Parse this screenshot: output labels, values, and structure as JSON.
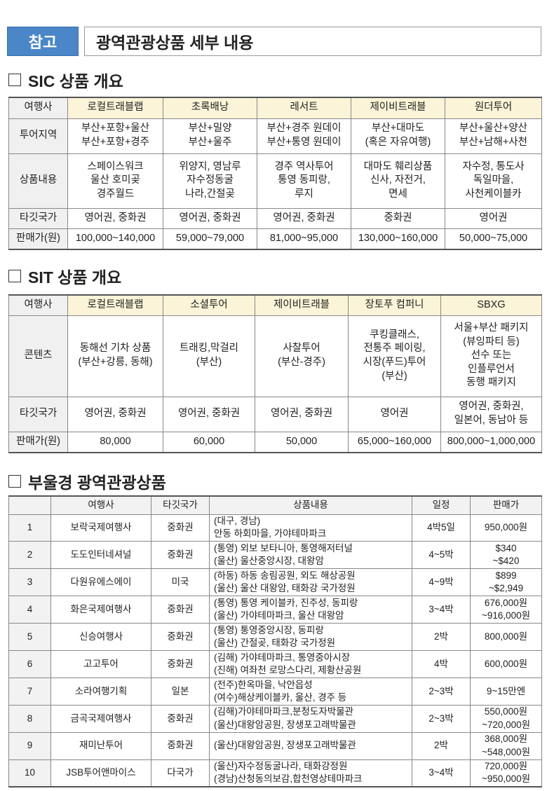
{
  "banner": {
    "label": "참고",
    "title": "광역관광상품 세부 내용"
  },
  "sic": {
    "heading": "SIC 상품 개요",
    "header": [
      "여행사",
      "로컬트래블랩",
      "초록배낭",
      "레서트",
      "제이비트래블",
      "원더투어"
    ],
    "rows": [
      {
        "label": "투어지역",
        "cells": [
          [
            "부산+포항+울산",
            "부산+포항+경주"
          ],
          [
            "부산+밀양",
            "부산+울주"
          ],
          [
            "부산+경주 원데이",
            "부산+통영 원데이"
          ],
          [
            "부산+대마도",
            "(혹은 자유여행)"
          ],
          [
            "부산+울산+양산",
            "부산+남해+사천"
          ]
        ]
      },
      {
        "label": "상품내용",
        "cells": [
          [
            "스페이스워크",
            "울산 호미곶",
            "경주월드"
          ],
          [
            "위양지, 영남루",
            "자수정동굴",
            "나라,간절곶"
          ],
          [
            "경주 역사투어",
            "통영 동피랑,",
            "루지"
          ],
          [
            "대마도 훼리상품",
            "신사, 자전거,",
            "면세"
          ],
          [
            "자수정, 통도사",
            "독일마을,",
            "사천케이블카"
          ]
        ]
      },
      {
        "label": "타깃국가",
        "cells": [
          [
            "영어권, 중화권"
          ],
          [
            "영어권, 중화권"
          ],
          [
            "영어권, 중화권"
          ],
          [
            "중화권"
          ],
          [
            "영어권"
          ]
        ]
      },
      {
        "label": "판매가(원)",
        "cells": [
          [
            "100,000~140,000"
          ],
          [
            "59,000~79,000"
          ],
          [
            "81,000~95,000"
          ],
          [
            "130,000~160,000"
          ],
          [
            "50,000~75,000"
          ]
        ]
      }
    ]
  },
  "sit": {
    "heading": "SIT 상품 개요",
    "header": [
      "여행사",
      "로컬트래블랩",
      "소셜투어",
      "제이비트래블",
      "장토푸 컴퍼니",
      "SBXG"
    ],
    "rows": [
      {
        "label": "콘텐츠",
        "cells": [
          [
            "동해선 기차 상품",
            "(부산+강릉, 동해)"
          ],
          [
            "트래킹,막걸리",
            "(부산)"
          ],
          [
            "사찰투어",
            "(부산-경주)"
          ],
          [
            "쿠킹클래스,",
            "전통주 페이링,",
            "시장(푸드)투어",
            "(부산)"
          ],
          [
            "서울+부산 패키지",
            "(뷰잉파티 등)",
            "선수 또는",
            "인플루언서",
            "동행 패키지"
          ]
        ]
      },
      {
        "label": "타깃국가",
        "cells": [
          [
            "영어권, 중화권"
          ],
          [
            "영어권, 중화권"
          ],
          [
            "영어권, 중화권"
          ],
          [
            "영어권"
          ],
          [
            "영어권, 중화권,",
            "일본어, 동남아 등"
          ]
        ]
      },
      {
        "label": "판매가(원)",
        "cells": [
          [
            "80,000"
          ],
          [
            "60,000"
          ],
          [
            "50,000"
          ],
          [
            "65,000~160,000"
          ],
          [
            "800,000~1,000,000"
          ]
        ]
      }
    ]
  },
  "regional": {
    "heading": "부울경 광역관광상품",
    "header": [
      "",
      "여행사",
      "타깃국가",
      "상품내용",
      "일정",
      "판매가"
    ],
    "rows": [
      {
        "no": "1",
        "agency": "보락국제여행사",
        "target": "중화권",
        "content": [
          "(대구, 경남)",
          "안동 하회마을, 가야테마파크"
        ],
        "schedule": "4박5일",
        "price": [
          "950,000원"
        ]
      },
      {
        "no": "2",
        "agency": "도도인터네셔널",
        "target": "중화권",
        "content": [
          "(통영) 외보 보타니아, 통영해저터널",
          "(울산) 울산중앙시장, 대왕암"
        ],
        "schedule": "4~5박",
        "price": [
          "$340",
          "~$420"
        ]
      },
      {
        "no": "3",
        "agency": "다원유에스에이",
        "target": "미국",
        "content": [
          "(하동) 하동 송림공원, 외도 해상공원",
          "(울산) 울산 대왕암, 태화강 국가정원"
        ],
        "schedule": "4~9박",
        "price": [
          "$899",
          "~$2,949"
        ]
      },
      {
        "no": "4",
        "agency": "화은국제여행사",
        "target": "중화권",
        "content": [
          "(통영) 통영 케이블카, 진주성, 동피랑",
          "(울산) 가야테마파크, 울산 대왕암"
        ],
        "schedule": "3~4박",
        "price": [
          "676,000원",
          "~916,000원"
        ]
      },
      {
        "no": "5",
        "agency": "신승여행사",
        "target": "중화권",
        "content": [
          "(통영) 통영중앙시장, 동피랑",
          "(울산) 간절곶, 태화강 국가정원"
        ],
        "schedule": "2박",
        "price": [
          "800,000원"
        ]
      },
      {
        "no": "6",
        "agency": "고고투어",
        "target": "중화권",
        "content": [
          "(김해) 가야테마파크, 통영중아시장",
          "(진해) 여좌천 로망스다리, 제황산공원"
        ],
        "schedule": "4박",
        "price": [
          "600,000원"
        ]
      },
      {
        "no": "7",
        "agency": "소라여행기획",
        "target": "일본",
        "content": [
          "(전주)한옥마을, 낙안읍성",
          "(여수)해상케이블카, 울산, 경주 등"
        ],
        "schedule": "2~3박",
        "price": [
          "9~15만엔"
        ]
      },
      {
        "no": "8",
        "agency": "금곡국제여행사",
        "target": "중화권",
        "content": [
          "(김해)가야테마파크,분청도자박물관",
          "(울산)대왕암공원, 장생포고래박물관"
        ],
        "schedule": "2~3박",
        "price": [
          "550,000원",
          "~720,000원"
        ]
      },
      {
        "no": "9",
        "agency": "재미난투어",
        "target": "중화권",
        "content": [
          "(울산)대왕암공원, 장생포고래박물관"
        ],
        "schedule": "2박",
        "price": [
          "368,000원",
          "~548,000원"
        ]
      },
      {
        "no": "10",
        "agency": "JSB투어앤마이스",
        "target": "다국가",
        "content": [
          "(울산)자수정동굴나라, 태화강정원",
          "(경남)산청동의보감,합천영상테마파크"
        ],
        "schedule": "3~4박",
        "price": [
          "720,000원",
          "~950,000원"
        ]
      }
    ]
  }
}
